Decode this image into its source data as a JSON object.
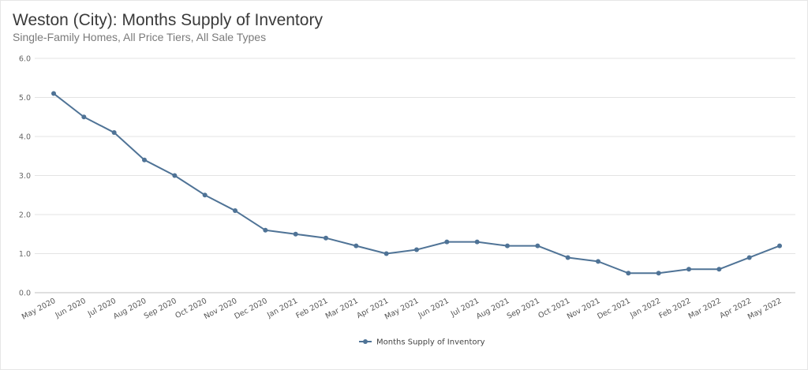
{
  "chart_data": {
    "type": "line",
    "title": "Weston (City): Months Supply of Inventory",
    "subtitle": "Single-Family Homes, All Price Tiers, All Sale Types",
    "categories": [
      "May 2020",
      "Jun 2020",
      "Jul 2020",
      "Aug 2020",
      "Sep 2020",
      "Oct 2020",
      "Nov 2020",
      "Dec 2020",
      "Jan 2021",
      "Feb 2021",
      "Mar 2021",
      "Apr 2021",
      "May 2021",
      "Jun 2021",
      "Jul 2021",
      "Aug 2021",
      "Sep 2021",
      "Oct 2021",
      "Nov 2021",
      "Dec 2021",
      "Jan 2022",
      "Feb 2022",
      "Mar 2022",
      "Apr 2022",
      "May 2022"
    ],
    "series": [
      {
        "name": "Months Supply of Inventory",
        "color": "#4f7396",
        "values": [
          5.1,
          4.5,
          4.1,
          3.4,
          3.0,
          2.5,
          2.1,
          1.6,
          1.5,
          1.4,
          1.2,
          1.0,
          1.1,
          1.3,
          1.3,
          1.2,
          1.2,
          0.9,
          0.8,
          0.5,
          0.5,
          0.6,
          0.6,
          0.9,
          1.2
        ]
      }
    ],
    "yticks": [
      "0.0",
      "1.0",
      "2.0",
      "3.0",
      "4.0",
      "5.0",
      "6.0"
    ],
    "ylim": [
      0,
      6
    ],
    "xlabel": "",
    "ylabel": "",
    "grid": true,
    "legend_position": "bottom-center"
  }
}
